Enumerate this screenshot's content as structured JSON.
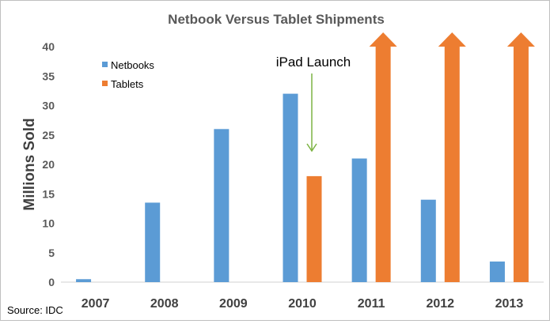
{
  "chart_data": {
    "type": "bar",
    "title": "Netbook Versus Tablet Shipments",
    "ylabel": "Millions Sold",
    "xlabel": "",
    "source": "Source: IDC",
    "categories": [
      "2007",
      "2008",
      "2009",
      "2010",
      "2011",
      "2012",
      "2013"
    ],
    "series": [
      {
        "name": "Netbooks",
        "color": "#5b9bd5",
        "values": [
          0.5,
          13.5,
          26,
          32,
          21,
          14,
          3.5
        ]
      },
      {
        "name": "Tablets",
        "color": "#ed7d31",
        "values": [
          null,
          null,
          null,
          18,
          40,
          40,
          40
        ],
        "exceeds_axis": [
          false,
          false,
          false,
          false,
          true,
          true,
          true
        ]
      }
    ],
    "ylim": [
      0,
      40
    ],
    "yticks": [
      0,
      5,
      10,
      15,
      20,
      25,
      30,
      35,
      40
    ],
    "grid": false,
    "legend_position": "top-left",
    "annotations": [
      {
        "text": "iPad Launch",
        "color": "#7cb342",
        "points_to_category": "2010"
      }
    ]
  }
}
